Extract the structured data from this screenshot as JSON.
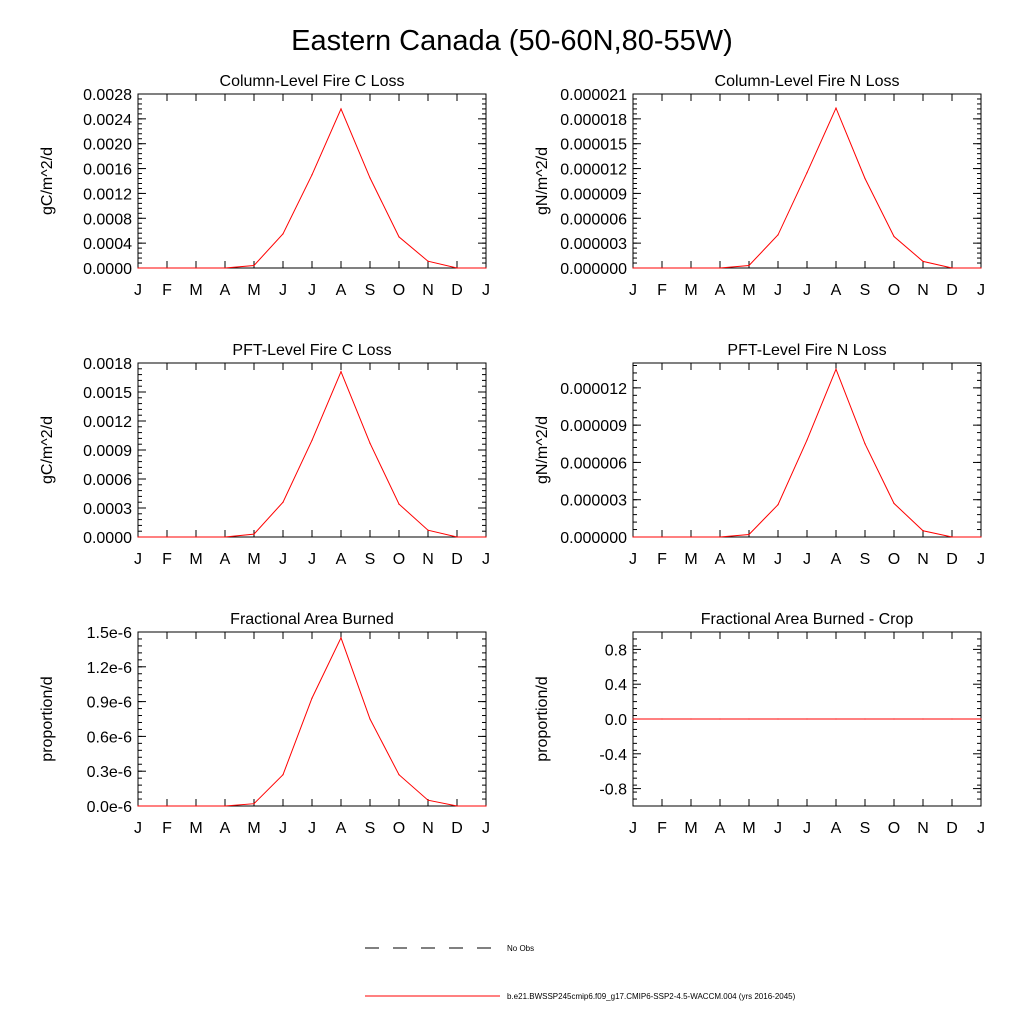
{
  "figure": {
    "title": "Eastern Canada (50-60N,80-55W)",
    "legend": {
      "obs_label": "No Obs",
      "obs_color": "#000000",
      "model_label": "b.e21.BWSSP245cmip6.f09_g17.CMIP6-SSP2-4.5-WACCM.004 (yrs 2016-2045)",
      "model_color": "#ff0000"
    }
  },
  "chart_data": [
    {
      "type": "line",
      "title": "Column-Level Fire C Loss",
      "ylabel": "gC/m^2/d",
      "xlabel": "",
      "categories": [
        "J",
        "F",
        "M",
        "A",
        "M",
        "J",
        "J",
        "A",
        "S",
        "O",
        "N",
        "D",
        "J"
      ],
      "ylim": [
        0,
        0.0028
      ],
      "yticks": [
        "0.0000",
        "0.0004",
        "0.0008",
        "0.0012",
        "0.0016",
        "0.0020",
        "0.0024",
        "0.0028"
      ],
      "yticks_values": [
        0,
        0.0004,
        0.0008,
        0.0012,
        0.0016,
        0.002,
        0.0024,
        0.0028
      ],
      "series": [
        {
          "color": "#ff0000",
          "values": [
            0,
            0,
            0,
            0,
            4e-05,
            0.00055,
            0.0015,
            0.00256,
            0.00145,
            0.0005,
            0.00011,
            0.0,
            0.0
          ]
        }
      ],
      "grid": false
    },
    {
      "type": "line",
      "title": "Column-Level Fire N Loss",
      "ylabel": "gN/m^2/d",
      "xlabel": "",
      "categories": [
        "J",
        "F",
        "M",
        "A",
        "M",
        "J",
        "J",
        "A",
        "S",
        "O",
        "N",
        "D",
        "J"
      ],
      "ylim": [
        0,
        2.1e-05
      ],
      "yticks": [
        "0.000000",
        "0.000003",
        "0.000006",
        "0.000009",
        "0.000012",
        "0.000015",
        "0.000018",
        "0.000021"
      ],
      "yticks_values": [
        0,
        3e-06,
        6e-06,
        9e-06,
        1.2e-05,
        1.5e-05,
        1.8e-05,
        2.1e-05
      ],
      "series": [
        {
          "color": "#ff0000",
          "values": [
            0,
            0,
            0,
            0,
            3e-07,
            4e-06,
            1.15e-05,
            1.93e-05,
            1.08e-05,
            3.8e-06,
            8e-07,
            0.0,
            0.0
          ]
        }
      ],
      "grid": false
    },
    {
      "type": "line",
      "title": "PFT-Level Fire C Loss",
      "ylabel": "gC/m^2/d",
      "xlabel": "",
      "categories": [
        "J",
        "F",
        "M",
        "A",
        "M",
        "J",
        "J",
        "A",
        "S",
        "O",
        "N",
        "D",
        "J"
      ],
      "ylim": [
        0,
        0.0018
      ],
      "yticks": [
        "0.0000",
        "0.0003",
        "0.0006",
        "0.0009",
        "0.0012",
        "0.0015",
        "0.0018"
      ],
      "yticks_values": [
        0,
        0.0003,
        0.0006,
        0.0009,
        0.0012,
        0.0015,
        0.0018
      ],
      "series": [
        {
          "color": "#ff0000",
          "values": [
            0,
            0,
            0,
            0,
            3e-05,
            0.00036,
            0.001,
            0.00171,
            0.00097,
            0.00034,
            7e-05,
            0.0,
            0.0
          ]
        }
      ],
      "grid": false
    },
    {
      "type": "line",
      "title": "PFT-Level Fire N Loss",
      "ylabel": "gN/m^2/d",
      "xlabel": "",
      "categories": [
        "J",
        "F",
        "M",
        "A",
        "M",
        "J",
        "J",
        "A",
        "S",
        "O",
        "N",
        "D",
        "J"
      ],
      "ylim": [
        0,
        1.4e-05
      ],
      "yticks": [
        "0.000000",
        "0.000003",
        "0.000006",
        "0.000009",
        "0.000012"
      ],
      "yticks_values": [
        0,
        3e-06,
        6e-06,
        9e-06,
        1.2e-05
      ],
      "series": [
        {
          "color": "#ff0000",
          "values": [
            0,
            0,
            0,
            0,
            2e-07,
            2.6e-06,
            7.8e-06,
            1.35e-05,
            7.5e-06,
            2.7e-06,
            5e-07,
            0.0,
            0.0
          ]
        }
      ],
      "grid": false
    },
    {
      "type": "line",
      "title": "Fractional Area Burned",
      "ylabel": "proportion/d",
      "xlabel": "",
      "categories": [
        "J",
        "F",
        "M",
        "A",
        "M",
        "J",
        "J",
        "A",
        "S",
        "O",
        "N",
        "D",
        "J"
      ],
      "ylim": [
        0,
        1.5e-06
      ],
      "yticks": [
        "0.0e-6",
        "0.3e-6",
        "0.6e-6",
        "0.9e-6",
        "1.2e-6",
        "1.5e-6"
      ],
      "yticks_values": [
        0,
        3e-07,
        6e-07,
        9e-07,
        1.2e-06,
        1.5e-06
      ],
      "series": [
        {
          "color": "#ff0000",
          "values": [
            0,
            0,
            0,
            0,
            2e-08,
            2.7e-07,
            9.3e-07,
            1.45e-06,
            7.5e-07,
            2.7e-07,
            5e-08,
            0.0,
            0.0
          ]
        }
      ],
      "grid": false
    },
    {
      "type": "line",
      "title": "Fractional Area Burned - Crop",
      "ylabel": "proportion/d",
      "xlabel": "",
      "categories": [
        "J",
        "F",
        "M",
        "A",
        "M",
        "J",
        "J",
        "A",
        "S",
        "O",
        "N",
        "D",
        "J"
      ],
      "ylim": [
        -1,
        1
      ],
      "yticks": [
        "-0.8",
        "-0.4",
        "0.0",
        "0.4",
        "0.8"
      ],
      "yticks_values": [
        -0.8,
        -0.4,
        0,
        0.4,
        0.8
      ],
      "series": [
        {
          "color": "#ff0000",
          "values": [
            0,
            0,
            0,
            0,
            0,
            0,
            0,
            0,
            0,
            0,
            0,
            0,
            0
          ]
        }
      ],
      "grid": false
    }
  ]
}
